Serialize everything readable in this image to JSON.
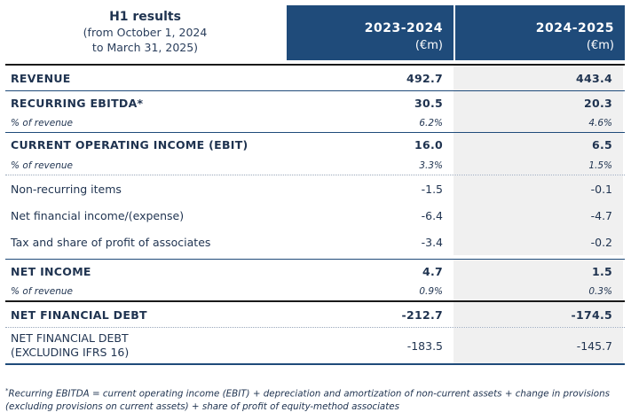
{
  "header": {
    "title": "H1 results",
    "subtitle_line1": "(from October 1, 2024",
    "subtitle_line2": "to March 31, 2025)",
    "col1_year": "2023-2024",
    "col1_unit": "(€m)",
    "col2_year": "2024-2025",
    "col2_unit": "(€m)"
  },
  "rows": {
    "revenue": {
      "label": "REVENUE",
      "v1": "492.7",
      "v2": "443.4"
    },
    "ebitda": {
      "label": "RECURRING EBITDA*",
      "v1": "30.5",
      "v2": "20.3"
    },
    "ebitda_pct": {
      "label": "% of revenue",
      "v1": "6.2%",
      "v2": "4.6%"
    },
    "ebit": {
      "label": "CURRENT OPERATING INCOME (EBIT)",
      "v1": "16.0",
      "v2": "6.5"
    },
    "ebit_pct": {
      "label": "% of revenue",
      "v1": "3.3%",
      "v2": "1.5%"
    },
    "nonrec": {
      "label": "Non-recurring items",
      "v1": "-1.5",
      "v2": "-0.1"
    },
    "netfin": {
      "label": "Net financial income/(expense)",
      "v1": "-6.4",
      "v2": "-4.7"
    },
    "tax": {
      "label": "Tax and share of profit of associates",
      "v1": "-3.4",
      "v2": "-0.2"
    },
    "netincome": {
      "label": "NET INCOME",
      "v1": "4.7",
      "v2": "1.5"
    },
    "netincome_pct": {
      "label": "% of revenue",
      "v1": "0.9%",
      "v2": "0.3%"
    },
    "netdebt": {
      "label": "NET FINANCIAL DEBT",
      "v1": "-212.7",
      "v2": "-174.5"
    },
    "netdebt_ex_line1": "NET FINANCIAL DEBT",
    "netdebt_ex_line2": "(EXCLUDING IFRS 16)",
    "netdebt_ex": {
      "v1": "-183.5",
      "v2": "-145.7"
    }
  },
  "footnote": {
    "marker": "*",
    "text": "Recurring EBITDA = current operating income (EBIT) + depreciation and amortization of non-current assets + change in provisions (excluding provisions on current assets) + share of profit of equity-method associates"
  },
  "colors": {
    "header_bg": "#1f4b7a",
    "text": "#1f3350",
    "alt_col_bg": "#f0f0f0"
  }
}
